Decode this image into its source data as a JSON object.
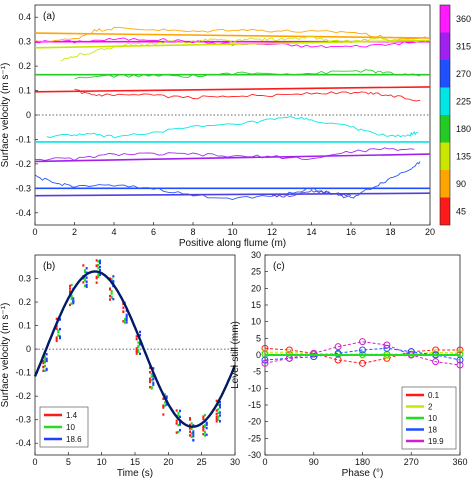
{
  "chart_data": [
    {
      "panel": "(a)",
      "type": "line",
      "xlabel": "Positive along flume (m)",
      "ylabel": "Surface velocity (m s⁻¹)",
      "xlim": [
        0,
        20
      ],
      "ylim": [
        -0.45,
        0.45
      ],
      "xticks": [
        0,
        2,
        4,
        6,
        8,
        10,
        12,
        14,
        16,
        18,
        20
      ],
      "yticks": [
        -0.4,
        -0.3,
        -0.2,
        -0.1,
        0,
        0.1,
        0.2,
        0.3,
        0.4
      ],
      "colorbar": {
        "ticks": [
          45,
          90,
          135,
          180,
          225,
          270,
          315,
          360
        ],
        "colors": [
          "#ff1a1a",
          "#ffa500",
          "#c8e600",
          "#22cc22",
          "#00e5e5",
          "#1f4fff",
          "#a020f0",
          "#ff1aff"
        ]
      },
      "zero_line": "dotted",
      "series": [
        {
          "phase": 360,
          "color": "#ff00ff",
          "fit": [
            0.3,
            0.3
          ],
          "x": [
            0,
            2,
            4,
            6,
            8,
            10,
            12,
            14,
            16,
            18,
            19.8
          ],
          "y": [
            0.3,
            0.3,
            0.31,
            0.31,
            0.3,
            0.29,
            0.29,
            0.28,
            0.28,
            0.29,
            0.3
          ]
        },
        {
          "phase": 90,
          "color": "#ffa500",
          "fit": [
            0.335,
            0.315
          ],
          "x": [
            0,
            2,
            3,
            4,
            6,
            8,
            10,
            12,
            14,
            16,
            17.5,
            18,
            19.8
          ],
          "y": [
            0.3,
            0.31,
            0.345,
            0.355,
            0.35,
            0.34,
            0.35,
            0.345,
            0.34,
            0.34,
            0.32,
            0.3,
            0.32
          ]
        },
        {
          "phase": 135,
          "color": "#c8e600",
          "fit": [
            0.275,
            0.305
          ],
          "x": [
            1.3,
            2,
            3,
            4,
            5,
            6,
            7,
            8,
            9,
            10,
            11,
            12,
            13,
            14,
            15,
            16,
            17,
            18,
            19.8
          ],
          "y": [
            0.22,
            0.24,
            0.26,
            0.28,
            0.29,
            0.29,
            0.3,
            0.3,
            0.31,
            0.3,
            0.31,
            0.31,
            0.31,
            0.32,
            0.3,
            0.3,
            0.31,
            0.31,
            0.3
          ]
        },
        {
          "phase": 180,
          "color": "#22cc22",
          "fit": [
            0.165,
            0.165
          ],
          "x": [
            2,
            4,
            6,
            8,
            10,
            12,
            14,
            16,
            17,
            18,
            19.5
          ],
          "y": [
            0.15,
            0.16,
            0.16,
            0.16,
            0.17,
            0.17,
            0.17,
            0.18,
            0.18,
            0.17,
            0.16
          ]
        },
        {
          "phase": 45,
          "color": "#ff1a1a",
          "fit": [
            0.095,
            0.115
          ],
          "x": [
            2,
            3,
            4,
            6,
            8,
            10,
            12,
            14,
            16,
            17,
            18,
            19.5
          ],
          "y": [
            0.1,
            0.08,
            0.08,
            0.08,
            0.07,
            0.08,
            0.08,
            0.09,
            0.09,
            0.09,
            0.08,
            0.06
          ]
        },
        {
          "phase": 225,
          "color": "#00e5e5",
          "fit": [
            -0.11,
            -0.11
          ],
          "x": [
            0.6,
            2,
            3,
            4,
            6,
            8,
            10,
            12,
            13,
            14,
            16,
            17,
            18,
            19,
            19.4
          ],
          "y": [
            -0.09,
            -0.08,
            -0.08,
            -0.09,
            -0.07,
            -0.05,
            -0.04,
            -0.02,
            -0.01,
            -0.02,
            -0.05,
            -0.07,
            -0.09,
            -0.08,
            -0.07
          ]
        },
        {
          "phase": 315,
          "color": "#a020f0",
          "fit": [
            -0.19,
            -0.16
          ],
          "x": [
            0,
            2,
            4,
            6,
            8,
            10,
            12,
            14,
            16,
            17.5,
            19.2
          ],
          "y": [
            -0.18,
            -0.18,
            -0.16,
            -0.16,
            -0.16,
            -0.17,
            -0.17,
            -0.18,
            -0.15,
            -0.14,
            -0.14
          ]
        },
        {
          "phase": 270,
          "color": "#1f4fff",
          "fit": [
            -0.3,
            -0.3
          ],
          "x": [
            0,
            1,
            2,
            4,
            6,
            8,
            10,
            12,
            13,
            14,
            15,
            16,
            17,
            18,
            19,
            19.5
          ],
          "y": [
            -0.25,
            -0.28,
            -0.29,
            -0.29,
            -0.3,
            -0.33,
            -0.34,
            -0.33,
            -0.32,
            -0.3,
            -0.32,
            -0.34,
            -0.3,
            -0.26,
            -0.22,
            -0.19
          ]
        },
        {
          "phase": 315,
          "color": "#5040e0",
          "fit": [
            -0.33,
            -0.32
          ],
          "x": [
            12,
            13,
            14,
            15,
            16
          ],
          "y": [
            -0.33,
            -0.33,
            -0.31,
            -0.32,
            -0.33
          ]
        }
      ]
    },
    {
      "panel": "(b)",
      "type": "scatter",
      "xlabel": "Time (s)",
      "ylabel": "Surface velocity (m s⁻¹)",
      "xlim": [
        0,
        30
      ],
      "ylim": [
        -0.45,
        0.4
      ],
      "xticks": [
        0,
        5,
        10,
        15,
        20,
        25,
        30
      ],
      "yticks": [
        -0.4,
        -0.3,
        -0.2,
        -0.1,
        0,
        0.1,
        0.2,
        0.3
      ],
      "zero_line": "dotted",
      "fit_curve": {
        "color": "#001a66",
        "amplitude": 0.33,
        "offset": 0.0,
        "period": 29.3,
        "peak_time": 9.0
      },
      "legend": [
        {
          "label": "1.4",
          "color": "#ff1a1a"
        },
        {
          "label": "10",
          "color": "#22dd22"
        },
        {
          "label": "18.6",
          "color": "#2040ff"
        }
      ],
      "points_t": [
        1.5,
        3.5,
        5.5,
        7.5,
        9.5,
        11.5,
        13.5,
        15.5,
        17.5,
        19.5,
        21.5,
        23.5,
        25.5,
        27.5
      ],
      "points_v": [
        -0.05,
        0.08,
        0.23,
        0.31,
        0.33,
        0.26,
        0.16,
        0.03,
        -0.12,
        -0.24,
        -0.31,
        -0.34,
        -0.32,
        -0.26
      ],
      "spread": 0.05
    },
    {
      "panel": "(c)",
      "type": "line",
      "xlabel": "Phase (°)",
      "ylabel": "Level-still (mm)",
      "xlim": [
        0,
        360
      ],
      "ylim": [
        -30,
        30
      ],
      "xticks": [
        0,
        90,
        180,
        270,
        360
      ],
      "yticks": [
        -30,
        -25,
        -20,
        -15,
        -10,
        -5,
        0,
        5,
        10,
        15,
        20,
        25,
        30
      ],
      "legend": [
        {
          "label": "0.1",
          "color": "#ff1a1a"
        },
        {
          "label": "2",
          "color": "#c8e600"
        },
        {
          "label": "10",
          "color": "#22dd22"
        },
        {
          "label": "18",
          "color": "#1f4fff"
        },
        {
          "label": "19.9",
          "color": "#cc22cc"
        }
      ],
      "markers_x": [
        0,
        45,
        90,
        135,
        180,
        225,
        270,
        315,
        360
      ],
      "series": [
        {
          "name": "0.1",
          "color": "#ff1a1a",
          "y": [
            2.0,
            1.5,
            0.5,
            -1.5,
            -2.5,
            -1.0,
            1.0,
            1.5,
            1.5
          ]
        },
        {
          "name": "2",
          "color": "#c8e600",
          "y": [
            0.8,
            0.8,
            0.4,
            0.2,
            0.0,
            -0.2,
            0.3,
            0.8,
            0.6
          ]
        },
        {
          "name": "10",
          "color": "#22dd22",
          "y": [
            0.2,
            0.2,
            0.2,
            0.2,
            0.2,
            0.2,
            0.2,
            0.2,
            0.2
          ]
        },
        {
          "name": "18",
          "color": "#1f4fff",
          "y": [
            -1.5,
            -1.0,
            -0.5,
            0.5,
            1.5,
            2.0,
            1.0,
            0.0,
            -1.5
          ]
        },
        {
          "name": "19.9",
          "color": "#cc22cc",
          "y": [
            -2.5,
            -1.0,
            0.5,
            2.5,
            4.0,
            3.0,
            0.0,
            -2.0,
            -3.0
          ]
        }
      ]
    }
  ]
}
